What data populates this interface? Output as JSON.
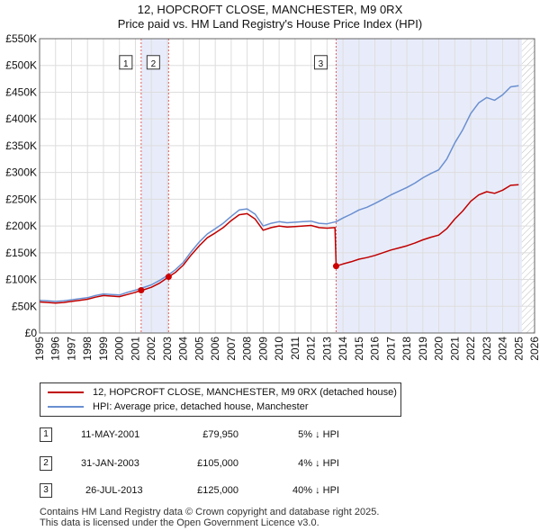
{
  "title_line1": "12, HOPCROFT CLOSE, MANCHESTER, M9 0RX",
  "title_line2": "Price paid vs. HM Land Registry's House Price Index (HPI)",
  "legend": {
    "property": "12, HOPCROFT CLOSE, MANCHESTER, M9 0RX (detached house)",
    "hpi": "HPI: Average price, detached house, Manchester"
  },
  "sales": [
    {
      "num": "1",
      "date": "11-MAY-2001",
      "price": "£79,950",
      "pct": "5% ↓ HPI"
    },
    {
      "num": "2",
      "date": "31-JAN-2003",
      "price": "£105,000",
      "pct": "4% ↓ HPI"
    },
    {
      "num": "3",
      "date": "26-JUL-2013",
      "price": "£125,000",
      "pct": "40% ↓ HPI"
    }
  ],
  "footer_line1": "Contains HM Land Registry data © Crown copyright and database right 2025.",
  "footer_line2": "This data is licensed under the Open Government Licence v3.0.",
  "colors": {
    "property": "#c00000",
    "hpi": "#6a8fd0",
    "shade": "#e8ecfa",
    "sale_marker": "#cc0000"
  },
  "chart_data": {
    "type": "line",
    "title": "Price paid vs. HM Land Registry's House Price Index (HPI)",
    "xlim": [
      1995,
      2026
    ],
    "ylim": [
      0,
      550000
    ],
    "y_ticks": [
      0,
      50000,
      100000,
      150000,
      200000,
      250000,
      300000,
      350000,
      400000,
      450000,
      500000,
      550000
    ],
    "y_tick_labels": [
      "£0",
      "£50K",
      "£100K",
      "£150K",
      "£200K",
      "£250K",
      "£300K",
      "£350K",
      "£400K",
      "£450K",
      "£500K",
      "£550K"
    ],
    "x_ticks": [
      1995,
      1996,
      1997,
      1998,
      1999,
      2000,
      2001,
      2002,
      2003,
      2004,
      2005,
      2006,
      2007,
      2008,
      2009,
      2010,
      2011,
      2012,
      2013,
      2014,
      2015,
      2016,
      2017,
      2018,
      2019,
      2020,
      2021,
      2022,
      2023,
      2024,
      2025,
      2026
    ],
    "x_tick_labels": [
      "1995",
      "1996",
      "1997",
      "1998",
      "1999",
      "2000",
      "2001",
      "2002",
      "2003",
      "2004",
      "2005",
      "2006",
      "2007",
      "2008",
      "2009",
      "2010",
      "2011",
      "2012",
      "2013",
      "2014",
      "2015",
      "2016",
      "2017",
      "2018",
      "2019",
      "2020",
      "2021",
      "2022",
      "2023",
      "2024",
      "2025",
      "2026"
    ],
    "grid": true,
    "shaded_periods": [
      [
        2001.36,
        2003.08
      ],
      [
        2013.57,
        2025.2
      ]
    ],
    "hatch_after": 2025.2,
    "sale_markers": [
      {
        "label": "1",
        "x": 2001.36,
        "y": 79950
      },
      {
        "label": "2",
        "x": 2003.08,
        "y": 105000
      },
      {
        "label": "3",
        "x": 2013.57,
        "y": 125000
      }
    ],
    "series": [
      {
        "name": "HPI: Average price, detached house, Manchester",
        "points": [
          [
            1995.0,
            61000
          ],
          [
            1995.5,
            60000
          ],
          [
            1996.0,
            59000
          ],
          [
            1996.5,
            60000
          ],
          [
            1997.0,
            62000
          ],
          [
            1997.5,
            64000
          ],
          [
            1998.0,
            66000
          ],
          [
            1998.5,
            70000
          ],
          [
            1999.0,
            73000
          ],
          [
            1999.5,
            72000
          ],
          [
            2000.0,
            71000
          ],
          [
            2000.5,
            76000
          ],
          [
            2001.0,
            80000
          ],
          [
            2001.36,
            84000
          ],
          [
            2001.5,
            85000
          ],
          [
            2002.0,
            90000
          ],
          [
            2002.5,
            98000
          ],
          [
            2003.08,
            109000
          ],
          [
            2003.5,
            118000
          ],
          [
            2004.0,
            132000
          ],
          [
            2004.5,
            152000
          ],
          [
            2005.0,
            170000
          ],
          [
            2005.5,
            185000
          ],
          [
            2006.0,
            195000
          ],
          [
            2006.5,
            205000
          ],
          [
            2007.0,
            218000
          ],
          [
            2007.5,
            230000
          ],
          [
            2008.0,
            232000
          ],
          [
            2008.5,
            222000
          ],
          [
            2009.0,
            200000
          ],
          [
            2009.5,
            205000
          ],
          [
            2010.0,
            208000
          ],
          [
            2010.5,
            206000
          ],
          [
            2011.0,
            207000
          ],
          [
            2011.5,
            208000
          ],
          [
            2012.0,
            209000
          ],
          [
            2012.5,
            205000
          ],
          [
            2013.0,
            204000
          ],
          [
            2013.57,
            208000
          ],
          [
            2014.0,
            215000
          ],
          [
            2014.5,
            222000
          ],
          [
            2015.0,
            230000
          ],
          [
            2015.5,
            235000
          ],
          [
            2016.0,
            242000
          ],
          [
            2016.5,
            250000
          ],
          [
            2017.0,
            258000
          ],
          [
            2017.5,
            265000
          ],
          [
            2018.0,
            272000
          ],
          [
            2018.5,
            280000
          ],
          [
            2019.0,
            290000
          ],
          [
            2019.5,
            298000
          ],
          [
            2020.0,
            305000
          ],
          [
            2020.5,
            325000
          ],
          [
            2021.0,
            355000
          ],
          [
            2021.5,
            380000
          ],
          [
            2022.0,
            410000
          ],
          [
            2022.5,
            430000
          ],
          [
            2023.0,
            440000
          ],
          [
            2023.5,
            435000
          ],
          [
            2024.0,
            445000
          ],
          [
            2024.5,
            460000
          ],
          [
            2025.0,
            462000
          ]
        ]
      },
      {
        "name": "12, HOPCROFT CLOSE, MANCHESTER, M9 0RX (detached house)",
        "points": [
          [
            1995.0,
            58000
          ],
          [
            1995.5,
            57000
          ],
          [
            1996.0,
            56000
          ],
          [
            1996.5,
            57000
          ],
          [
            1997.0,
            59000
          ],
          [
            1997.5,
            61000
          ],
          [
            1998.0,
            63000
          ],
          [
            1998.5,
            67000
          ],
          [
            1999.0,
            70000
          ],
          [
            1999.5,
            69000
          ],
          [
            2000.0,
            68000
          ],
          [
            2000.5,
            72000
          ],
          [
            2001.0,
            76000
          ],
          [
            2001.36,
            79950
          ],
          [
            2001.5,
            80500
          ],
          [
            2002.0,
            85500
          ],
          [
            2002.5,
            93000
          ],
          [
            2003.08,
            105000
          ],
          [
            2003.5,
            113000
          ],
          [
            2004.0,
            127000
          ],
          [
            2004.5,
            146000
          ],
          [
            2005.0,
            163000
          ],
          [
            2005.5,
            178000
          ],
          [
            2006.0,
            187000
          ],
          [
            2006.5,
            197000
          ],
          [
            2007.0,
            210000
          ],
          [
            2007.5,
            221000
          ],
          [
            2008.0,
            223000
          ],
          [
            2008.5,
            213000
          ],
          [
            2009.0,
            192000
          ],
          [
            2009.5,
            197000
          ],
          [
            2010.0,
            200000
          ],
          [
            2010.5,
            198000
          ],
          [
            2011.0,
            199000
          ],
          [
            2011.5,
            200000
          ],
          [
            2012.0,
            201000
          ],
          [
            2012.5,
            197000
          ],
          [
            2013.0,
            196000
          ],
          [
            2013.5,
            197000
          ],
          [
            2013.57,
            125000
          ],
          [
            2014.0,
            129000
          ],
          [
            2014.5,
            133000
          ],
          [
            2015.0,
            138000
          ],
          [
            2015.5,
            141000
          ],
          [
            2016.0,
            145000
          ],
          [
            2016.5,
            150000
          ],
          [
            2017.0,
            155000
          ],
          [
            2017.5,
            159000
          ],
          [
            2018.0,
            163000
          ],
          [
            2018.5,
            168000
          ],
          [
            2019.0,
            174000
          ],
          [
            2019.5,
            179000
          ],
          [
            2020.0,
            183000
          ],
          [
            2020.5,
            195000
          ],
          [
            2021.0,
            213000
          ],
          [
            2021.5,
            228000
          ],
          [
            2022.0,
            246000
          ],
          [
            2022.5,
            258000
          ],
          [
            2023.0,
            264000
          ],
          [
            2023.5,
            261000
          ],
          [
            2024.0,
            267000
          ],
          [
            2024.5,
            276000
          ],
          [
            2025.0,
            277000
          ]
        ]
      }
    ]
  }
}
